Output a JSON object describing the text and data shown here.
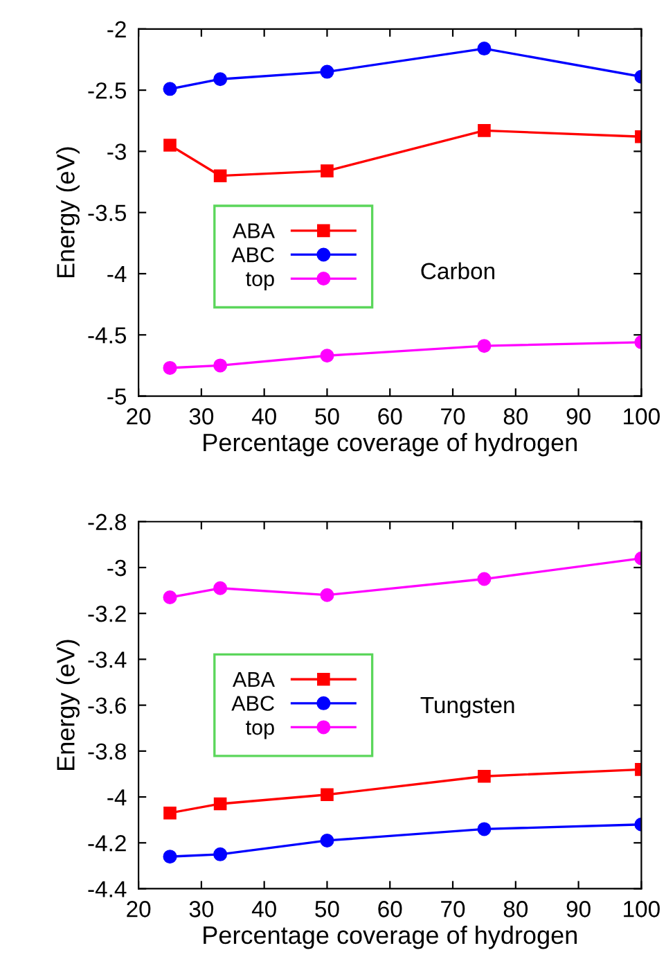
{
  "chart_data": [
    {
      "type": "line",
      "xlabel": "Percentage coverage of hydrogen",
      "ylabel": "Energy (eV)",
      "x": [
        25,
        33,
        50,
        75,
        100
      ],
      "xlim": [
        20,
        100
      ],
      "xticks": [
        20,
        30,
        40,
        50,
        60,
        70,
        80,
        90,
        100
      ],
      "ylim": [
        -5,
        -2
      ],
      "yticks": [
        -5,
        -4.5,
        -4,
        -3.5,
        -3,
        -2.5,
        -2
      ],
      "legend": "left",
      "annotations": [
        "Carbon"
      ],
      "series": [
        {
          "name": "ABA",
          "color": "#ff0000",
          "marker": "square",
          "values": [
            -2.95,
            -3.2,
            -3.16,
            -2.83,
            -2.88
          ]
        },
        {
          "name": "ABC",
          "color": "#0000ff",
          "marker": "circle",
          "values": [
            -2.49,
            -2.41,
            -2.35,
            -2.16,
            -2.39
          ]
        },
        {
          "name": "top",
          "color": "#ff00ff",
          "marker": "circle",
          "values": [
            -4.77,
            -4.75,
            -4.67,
            -4.59,
            -4.56
          ]
        }
      ]
    },
    {
      "type": "line",
      "xlabel": "Percentage coverage of hydrogen",
      "ylabel": "Energy (eV)",
      "x": [
        25,
        33,
        50,
        75,
        100
      ],
      "xlim": [
        20,
        100
      ],
      "xticks": [
        20,
        30,
        40,
        50,
        60,
        70,
        80,
        90,
        100
      ],
      "ylim": [
        -4.4,
        -2.8
      ],
      "yticks": [
        -4.4,
        -4.2,
        -4,
        -3.8,
        -3.6,
        -3.4,
        -3.2,
        -3,
        -2.8
      ],
      "legend": "left",
      "annotations": [
        "Tungsten"
      ],
      "series": [
        {
          "name": "ABA",
          "color": "#ff0000",
          "marker": "square",
          "values": [
            -4.07,
            -4.03,
            -3.99,
            -3.91,
            -3.88
          ]
        },
        {
          "name": "ABC",
          "color": "#0000ff",
          "marker": "circle",
          "values": [
            -4.26,
            -4.25,
            -4.19,
            -4.14,
            -4.12
          ]
        },
        {
          "name": "top",
          "color": "#ff00ff",
          "marker": "circle",
          "values": [
            -3.13,
            -3.09,
            -3.12,
            -3.05,
            -2.96
          ]
        }
      ]
    }
  ]
}
